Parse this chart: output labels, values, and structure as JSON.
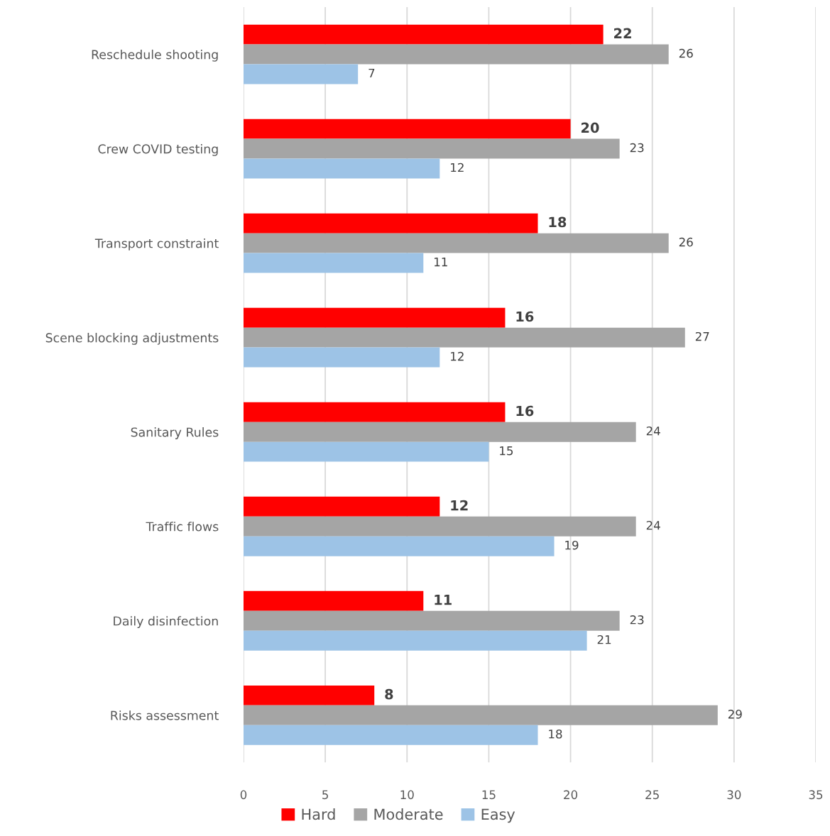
{
  "chart_data": {
    "type": "bar",
    "orientation": "horizontal",
    "categories": [
      "Reschedule shooting",
      "Crew COVID testing",
      "Transport constraint",
      "Scene blocking adjustments",
      "Sanitary Rules",
      "Traffic flows",
      "Daily disinfection",
      "Risks assessment"
    ],
    "series": [
      {
        "name": "Hard",
        "color": "#ff0000",
        "values": [
          22,
          20,
          18,
          16,
          16,
          12,
          11,
          8
        ]
      },
      {
        "name": "Moderate",
        "color": "#a5a5a5",
        "values": [
          26,
          23,
          26,
          27,
          24,
          24,
          23,
          29
        ]
      },
      {
        "name": "Easy",
        "color": "#9dc3e6",
        "values": [
          7,
          12,
          11,
          12,
          15,
          19,
          21,
          18
        ]
      }
    ],
    "xlim": [
      0,
      35
    ],
    "xticks": [
      0,
      5,
      10,
      15,
      20,
      25,
      30,
      35
    ],
    "grid": "x",
    "legend": "bottom",
    "data_labels": true
  }
}
